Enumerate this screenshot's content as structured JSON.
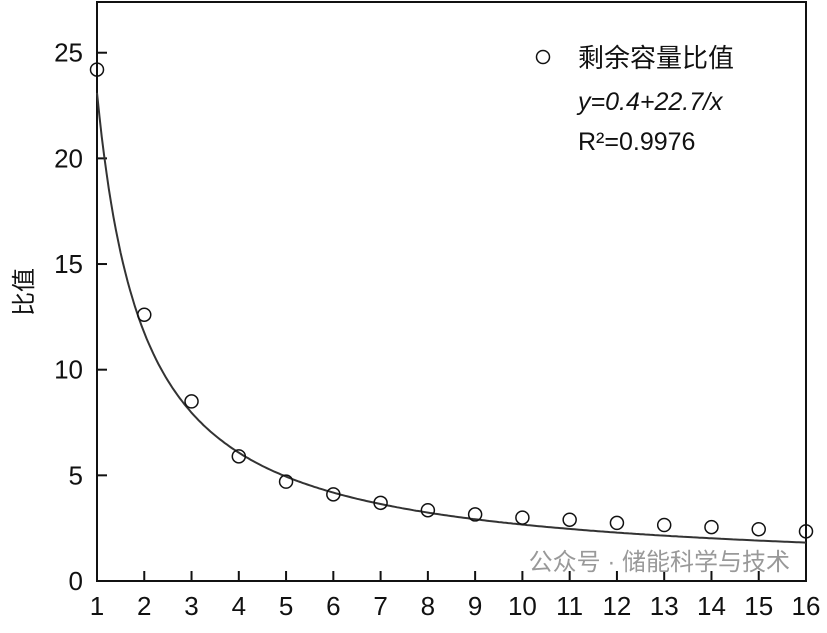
{
  "chart_data": {
    "type": "scatter",
    "title": "",
    "xlabel": "",
    "ylabel": "比值",
    "xlim": [
      1,
      16
    ],
    "ylim": [
      0,
      27.4
    ],
    "x_ticks": [
      1,
      2,
      3,
      4,
      5,
      6,
      7,
      8,
      9,
      10,
      11,
      12,
      13,
      14,
      15,
      16
    ],
    "y_ticks": [
      0,
      5,
      10,
      15,
      20,
      25
    ],
    "grid": false,
    "legend_position": "top-right",
    "series": [
      {
        "name": "剩余容量比值",
        "marker": "open-circle",
        "x": [
          1,
          2,
          3,
          4,
          5,
          6,
          7,
          8,
          9,
          10,
          11,
          12,
          13,
          14,
          15,
          16
        ],
        "y": [
          24.2,
          12.6,
          8.5,
          5.9,
          4.7,
          4.1,
          3.7,
          3.35,
          3.15,
          3.0,
          2.9,
          2.75,
          2.65,
          2.55,
          2.45,
          2.35
        ]
      }
    ],
    "fit": {
      "equation_label": "y=0.4+22.7/x",
      "r2_label": "R²=0.9976",
      "a": 0.4,
      "b": 22.7
    },
    "colors": {
      "axis": "#111111",
      "line": "#333333",
      "marker": "#111111"
    }
  },
  "watermark": "公众号 · 储能科学与技术"
}
